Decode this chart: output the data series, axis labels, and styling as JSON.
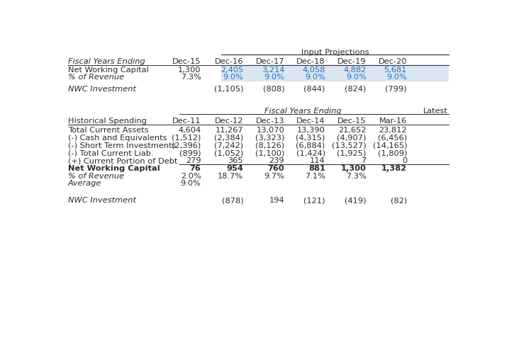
{
  "colors": {
    "blue": "#1E6FBF",
    "dark": "#2B2B2B",
    "shaded_bg": "#DCE6F1",
    "line": "#888888",
    "underline_line": "#555555"
  },
  "top": {
    "proj_label": "Input Projections",
    "fy_label": "Fiscal Years Ending",
    "col_headers": [
      "Dec-15",
      "Dec-16",
      "Dec-17",
      "Dec-18",
      "Dec-19",
      "Dec-20"
    ],
    "rows": [
      {
        "label": "Net Working Capital",
        "italic": false,
        "bold": false,
        "values": [
          "1,300",
          "2,405",
          "3,214",
          "4,058",
          "4,882",
          "5,681"
        ],
        "col_colors": [
          "dark",
          "blue",
          "blue",
          "blue",
          "blue",
          "blue"
        ]
      },
      {
        "label": "% of Revenue",
        "italic": true,
        "bold": false,
        "values": [
          "7.3%",
          "9.0%",
          "9.0%",
          "9.0%",
          "9.0%",
          "9.0%"
        ],
        "col_colors": [
          "dark",
          "blue",
          "blue",
          "blue",
          "blue",
          "blue"
        ]
      },
      {
        "label": "NWC Investment",
        "italic": true,
        "bold": false,
        "values": [
          "",
          "(1,105)",
          "(808)",
          "(844)",
          "(824)",
          "(799)"
        ],
        "col_colors": [
          "dark",
          "dark",
          "dark",
          "dark",
          "dark",
          "dark"
        ]
      }
    ]
  },
  "bottom": {
    "fy_label": "Fiscal Years Ending",
    "latest_label": "Latest",
    "hist_label": "Historical Spending",
    "col_headers": [
      "Dec-11",
      "Dec-12",
      "Dec-13",
      "Dec-14",
      "Dec-15",
      "Mar-16"
    ],
    "rows": [
      {
        "label": "Total Current Assets",
        "italic": false,
        "bold": false,
        "underline_after": false,
        "values": [
          "4,604",
          "11,267",
          "13,070",
          "13,390",
          "21,652",
          "23,812"
        ]
      },
      {
        "label": "(-) Cash and Equivalents",
        "italic": false,
        "bold": false,
        "underline_after": false,
        "values": [
          "(1,512)",
          "(2,384)",
          "(3,323)",
          "(4,315)",
          "(4,907)",
          "(6,456)"
        ]
      },
      {
        "label": "(-) Short Term Investments",
        "italic": false,
        "bold": false,
        "underline_after": false,
        "values": [
          "(2,396)",
          "(7,242)",
          "(8,126)",
          "(6,884)",
          "(13,527)",
          "(14,165)"
        ]
      },
      {
        "label": "(-) Total Current Liab.",
        "italic": false,
        "bold": false,
        "underline_after": false,
        "values": [
          "(899)",
          "(1,052)",
          "(1,100)",
          "(1,424)",
          "(1,925)",
          "(1,809)"
        ]
      },
      {
        "label": "(+) Current Portion of Debt",
        "italic": false,
        "bold": false,
        "underline_after": true,
        "values": [
          "279",
          "365",
          "239",
          "114",
          "7",
          "0"
        ]
      },
      {
        "label": "Net Working Capital",
        "italic": false,
        "bold": true,
        "underline_after": false,
        "values": [
          "76",
          "954",
          "760",
          "881",
          "1,300",
          "1,382"
        ]
      },
      {
        "label": "% of Revenue",
        "italic": true,
        "bold": false,
        "underline_after": false,
        "values": [
          "2.0%",
          "18.7%",
          "9.7%",
          "7.1%",
          "7.3%",
          ""
        ]
      },
      {
        "label": "Average",
        "italic": true,
        "bold": false,
        "underline_after": false,
        "values": [
          "9.0%",
          "",
          "",
          "",
          "",
          ""
        ]
      },
      {
        "label": "NWC Investment",
        "italic": true,
        "bold": false,
        "underline_after": false,
        "values": [
          "",
          "(878)",
          "194",
          "(121)",
          "(419)",
          "(82)"
        ]
      }
    ]
  }
}
